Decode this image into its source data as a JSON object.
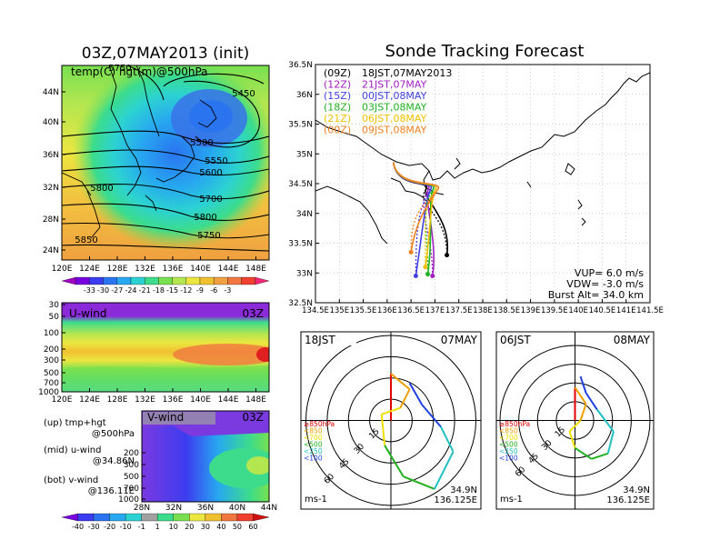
{
  "colors": {
    "map_bg_orange": "#f0a040",
    "map_bg_yellow": "#f2e640",
    "map_green": "#9fd860",
    "map_cyan": "#30c0e0",
    "map_blue": "#3a72e8",
    "track_09z": "#000000",
    "track_12z": "#a020c0",
    "track_15z": "#4040e0",
    "track_18z": "#20b020",
    "track_21z": "#f0c000",
    "track_00z": "#f08020"
  },
  "temp_map": {
    "title": "03Z,07MAY2013 (init)",
    "label": "temp(C) hgt(m)@500hPa",
    "lon_ticks": [
      "120E",
      "124E",
      "128E",
      "132E",
      "136E",
      "140E",
      "144E",
      "148E"
    ],
    "lat_ticks": [
      "44N",
      "40N",
      "36N",
      "32N",
      "28N",
      "24N"
    ],
    "contour_labels": [
      "5750",
      "5450",
      "5500",
      "5550",
      "5600",
      "5700",
      "5800",
      "5750",
      "5800",
      "5850"
    ],
    "colorbar": {
      "labels": [
        "-33",
        "-30",
        "-27",
        "-24",
        "-21",
        "-18",
        "-15",
        "-12",
        "-9",
        "-6",
        "-3"
      ],
      "colors": [
        "#a000c0",
        "#7800e0",
        "#3c3cf0",
        "#2a74f0",
        "#27a8f0",
        "#2cd2d2",
        "#3cdc8c",
        "#78e050",
        "#b4e650",
        "#ece640",
        "#f0c030",
        "#f0a040",
        "#f07840",
        "#f04030",
        "#f02878"
      ]
    }
  },
  "uwind": {
    "label": "U-wind",
    "time": "03Z",
    "p_ticks": [
      "30",
      "50",
      "100",
      "200",
      "300",
      "500",
      "700",
      "1000"
    ],
    "lon_ticks": [
      "120E",
      "124E",
      "128E",
      "132E",
      "136E",
      "140E",
      "144E",
      "148E"
    ]
  },
  "vwind": {
    "label": "V-wind",
    "time": "03Z",
    "p_ticks": [
      "200",
      "300",
      "500",
      "700",
      "1000"
    ],
    "lat_ticks": [
      "28N",
      "32N",
      "36N",
      "40N",
      "44N"
    ],
    "colorbar": {
      "labels": [
        "-40",
        "-30",
        "-20",
        "-10",
        "-1",
        "1",
        "10",
        "20",
        "30",
        "40",
        "50",
        "60"
      ],
      "colors": [
        "#7800e0",
        "#3c3cf0",
        "#2a74f0",
        "#27a8f0",
        "#2cd2d2",
        "#a0a0a0",
        "#3cdc8c",
        "#78e050",
        "#ece640",
        "#f0c030",
        "#f07840",
        "#f04030",
        "#d01010"
      ]
    }
  },
  "legend_notes": [
    {
      "line1": "(up) tmp+hgt",
      "line2": "@500hPa"
    },
    {
      "line1": "(mid) u-wind",
      "line2": "@34.86N"
    },
    {
      "line1": "(bot) v-wind",
      "line2": "@136.11E"
    }
  ],
  "tracking": {
    "title": "Sonde Tracking Forecast",
    "lat_ticks": [
      "36.5N",
      "36N",
      "35.5N",
      "35N",
      "34.5N",
      "34N",
      "33.5N",
      "33N",
      "32.5N"
    ],
    "lon_ticks": [
      "134.5E",
      "135E",
      "135.5E",
      "136E",
      "136.5E",
      "137E",
      "137.5E",
      "138E",
      "138.5E",
      "139E",
      "139.5E",
      "140E",
      "140.5E",
      "141E",
      "141.5E"
    ],
    "launches": [
      {
        "utc": "(09Z)",
        "jst": "18JST,07MAY2013"
      },
      {
        "utc": "(12Z)",
        "jst": "21JST,07MAY"
      },
      {
        "utc": "(15Z)",
        "jst": "00JST,08MAY"
      },
      {
        "utc": "(18Z)",
        "jst": "03JST,08MAY"
      },
      {
        "utc": "(21Z)",
        "jst": "06JST,08MAY"
      },
      {
        "utc": "(00Z)",
        "jst": "09JST,08MAY"
      }
    ],
    "params": {
      "vup": "VUP= 6.0 m/s",
      "vdw": "VDW= -3.0 m/s",
      "burst": "Burst Alt= 34.0 km"
    }
  },
  "hodographs": [
    {
      "time": "18JST",
      "date": "07MAY",
      "lat": "34.9N",
      "lon": "136.125E",
      "unit": "ms-1",
      "ring_labels": [
        "15",
        "30",
        "45",
        "60"
      ],
      "levels": [
        "≥850hPa",
        "<850",
        "<700",
        "<500",
        "<250",
        "<100"
      ]
    },
    {
      "time": "06JST",
      "date": "08MAY",
      "lat": "34.9N",
      "lon": "136.125E",
      "unit": "ms-1",
      "ring_labels": [
        "15",
        "30",
        "45",
        "60"
      ],
      "levels": [
        "≥850hPa",
        "<850",
        "<700",
        "<500",
        "<250",
        "<100"
      ]
    }
  ],
  "chart_data": [
    {
      "type": "heatmap",
      "title": "03Z,07MAY2013 (init)",
      "xlabel": "",
      "ylabel": "",
      "x_range": [
        "120E",
        "150E"
      ],
      "y_range": [
        "22N",
        "47N"
      ],
      "series_label": "temp(C) hgt(m)@500hPa",
      "contours_m": [
        5450,
        5500,
        5550,
        5600,
        5700,
        5750,
        5800,
        5850
      ],
      "colorbar_C": [
        -33,
        -30,
        -27,
        -24,
        -21,
        -18,
        -15,
        -12,
        -9,
        -6,
        -3
      ]
    },
    {
      "type": "heatmap",
      "title": "U-wind 03Z",
      "x_range": [
        "120E",
        "150E"
      ],
      "y_levels_hPa": [
        30,
        50,
        100,
        200,
        300,
        500,
        700,
        1000
      ]
    },
    {
      "type": "heatmap",
      "title": "V-wind 03Z",
      "x_range": [
        "28N",
        "44N"
      ],
      "y_levels_hPa": [
        200,
        300,
        500,
        700,
        1000
      ],
      "colorbar_ms": [
        -40,
        -30,
        -20,
        -10,
        -1,
        1,
        10,
        20,
        30,
        40,
        50,
        60
      ]
    },
    {
      "type": "line",
      "title": "Sonde Tracking Forecast",
      "x_range": [
        134.5,
        141.5
      ],
      "y_range": [
        32.5,
        36.5
      ],
      "launch_point": {
        "lon": 136.13,
        "lat": 34.86
      },
      "series": [
        {
          "name": "(09Z) 18JST,07MAY2013",
          "end": {
            "lon": 137.25,
            "lat": 33.3
          }
        },
        {
          "name": "(12Z) 21JST,07MAY",
          "end": {
            "lon": 136.95,
            "lat": 32.95
          }
        },
        {
          "name": "(15Z) 00JST,08MAY",
          "end": {
            "lon": 136.6,
            "lat": 32.95
          }
        },
        {
          "name": "(18Z) 03JST,08MAY",
          "end": {
            "lon": 136.85,
            "lat": 32.98
          }
        },
        {
          "name": "(21Z) 06JST,08MAY",
          "end": {
            "lon": 136.8,
            "lat": 33.1
          }
        },
        {
          "name": "(00Z) 09JST,08MAY",
          "end": {
            "lon": 136.5,
            "lat": 33.35
          }
        }
      ]
    }
  ]
}
